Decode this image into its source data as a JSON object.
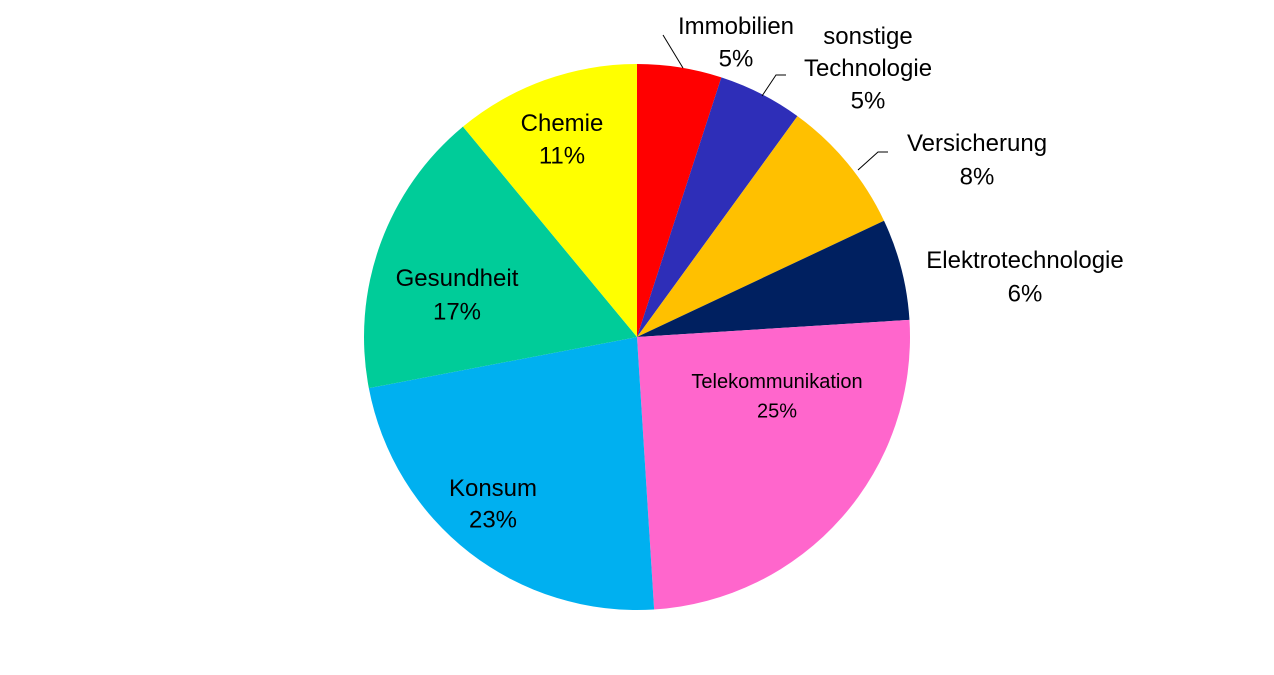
{
  "chart_data": {
    "type": "pie",
    "categories": [
      "Immobilien",
      "sonstige Technologie",
      "Versicherung",
      "Elektrotechnologie",
      "Telekommunikation",
      "Konsum",
      "Gesundheit",
      "Chemie"
    ],
    "values": [
      5,
      5,
      8,
      6,
      25,
      23,
      17,
      11
    ],
    "value_labels": [
      "5%",
      "5%",
      "8%",
      "6%",
      "25%",
      "23%",
      "17%",
      "11%"
    ],
    "colors": [
      "#ff0000",
      "#2e2eb8",
      "#ffc000",
      "#002060",
      "#ff66cc",
      "#00b0f0",
      "#00cc99",
      "#ffff00"
    ]
  }
}
